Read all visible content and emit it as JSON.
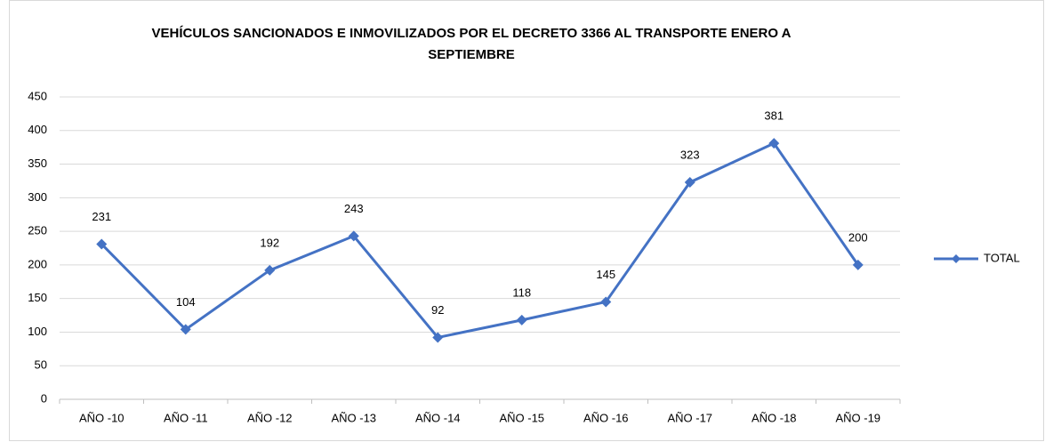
{
  "chart_data": {
    "type": "line",
    "title": "VEHÍCULOS SANCIONADOS E INMOVILIZADOS POR EL DECRETO 3366 AL TRANSPORTE ENERO A SEPTIEMBRE",
    "categories": [
      "AÑO -10",
      "AÑO -11",
      "AÑO -12",
      "AÑO -13",
      "AÑO -14",
      "AÑO -15",
      "AÑO -16",
      "AÑO -17",
      "AÑO -18",
      "AÑO -19"
    ],
    "series": [
      {
        "name": "TOTAL",
        "color": "#4472c4",
        "values": [
          231,
          104,
          192,
          243,
          92,
          118,
          145,
          323,
          381,
          200
        ]
      }
    ],
    "ylim": [
      0,
      450
    ],
    "yticks": [
      0,
      50,
      100,
      150,
      200,
      250,
      300,
      350,
      400,
      450
    ],
    "grid": true,
    "legend": "right"
  }
}
